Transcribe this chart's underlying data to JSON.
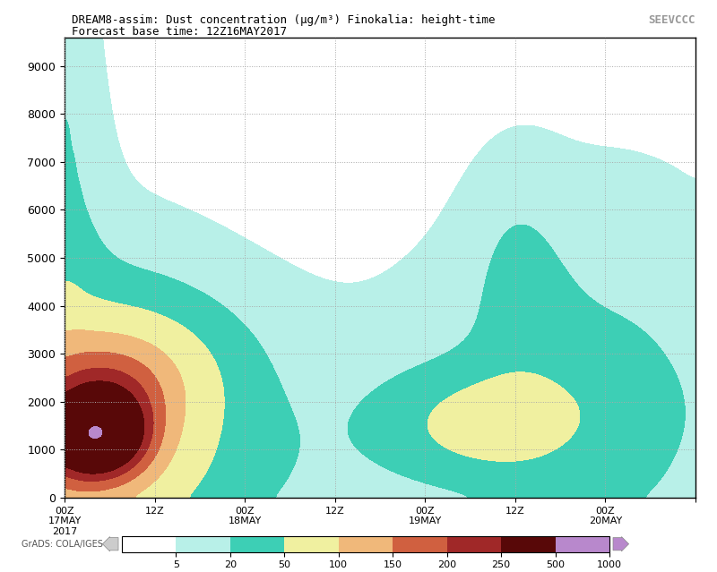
{
  "title_line1": "DREAM8-assim: Dust concentration (μg/m³) Finokalia: height-time",
  "title_line2": "Forecast base time: 12Z16MAY2017",
  "xlim": [
    0,
    84
  ],
  "ylim": [
    0,
    9600
  ],
  "yticks": [
    0,
    1000,
    2000,
    3000,
    4000,
    5000,
    6000,
    7000,
    8000,
    9000
  ],
  "xtick_positions": [
    0,
    12,
    24,
    36,
    48,
    60,
    72,
    84
  ],
  "xtick_labels": [
    "00Z\n17MAY\n2017",
    "12Z",
    "00Z\n18MAY",
    "12Z",
    "00Z\n19MAY",
    "12Z",
    "00Z\n20MAY",
    ""
  ],
  "colorbar_levels": [
    5,
    20,
    50,
    100,
    150,
    200,
    250,
    500,
    1000
  ],
  "colorbar_colors": [
    "#b8f0e8",
    "#3dcfb5",
    "#f0f0a0",
    "#f0b87a",
    "#d06040",
    "#a02828",
    "#580808",
    "#b888cc"
  ],
  "background_color": "#ffffff",
  "grid_color": "#aaaaaa",
  "logo_text": "SEEVCCC",
  "grads_text": "GrADS: COLA/IGES"
}
